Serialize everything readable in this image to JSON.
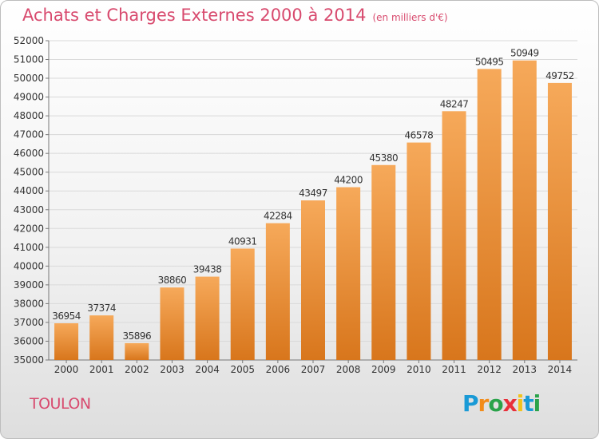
{
  "title": "Achats et Charges Externes 2000 à 2014",
  "subtitle": "(en milliers d'€)",
  "city": "TOULON",
  "logo": {
    "text": "Proxiti",
    "letters": [
      {
        "char": "P",
        "color": "#1a9ad6"
      },
      {
        "char": "r",
        "color": "#f28c1a"
      },
      {
        "char": "o",
        "color": "#2aa34a"
      },
      {
        "char": "x",
        "color": "#e8303a"
      },
      {
        "char": "i",
        "color": "#f2c21a"
      },
      {
        "char": "t",
        "color": "#1a9ad6"
      },
      {
        "char": "i",
        "color": "#2aa34a"
      }
    ]
  },
  "colors": {
    "bar_top": "#f6a95a",
    "bar_bottom": "#d8761c",
    "title": "#d84a6e",
    "grid": "#d9d9d9"
  },
  "chart_data": {
    "type": "bar",
    "categories": [
      "2000",
      "2001",
      "2002",
      "2003",
      "2004",
      "2005",
      "2006",
      "2007",
      "2008",
      "2009",
      "2010",
      "2011",
      "2012",
      "2013",
      "2014"
    ],
    "values": [
      36954,
      37374,
      35896,
      38860,
      39438,
      40931,
      42284,
      43497,
      44200,
      45380,
      46578,
      48247,
      50495,
      50949,
      49752
    ],
    "ylim": [
      35000,
      52000
    ],
    "yticks": [
      35000,
      36000,
      37000,
      38000,
      39000,
      40000,
      41000,
      42000,
      43000,
      44000,
      45000,
      46000,
      47000,
      48000,
      49000,
      50000,
      51000,
      52000
    ],
    "grid": true,
    "title": "Achats et Charges Externes 2000 à 2014",
    "xlabel": "",
    "ylabel": ""
  }
}
